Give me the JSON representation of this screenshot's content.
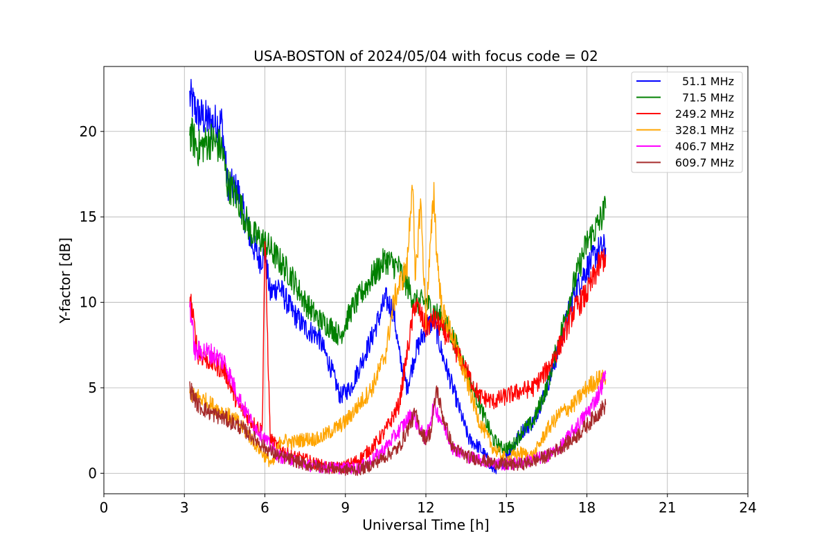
{
  "chart_data": {
    "type": "line",
    "title": "USA-BOSTON of 2024/05/04 with focus code = 02",
    "xlabel": "Universal Time [h]",
    "ylabel": "Y-factor [dB]",
    "xlim": [
      0,
      24
    ],
    "ylim": [
      -1.2,
      23.8
    ],
    "xticks": [
      0,
      3,
      6,
      9,
      12,
      15,
      18,
      21,
      24
    ],
    "yticks": [
      0,
      5,
      10,
      15,
      20
    ],
    "grid": true,
    "legend_position": "top-right",
    "series": [
      {
        "name": "51.1 MHz",
        "color": "#0000ff",
        "x": [
          3.2,
          3.5,
          4.0,
          4.4,
          4.6,
          5.0,
          5.5,
          5.8,
          6.0,
          6.2,
          6.5,
          7.0,
          7.5,
          8.0,
          8.5,
          8.8,
          9.2,
          9.6,
          10.0,
          10.5,
          10.8,
          11.0,
          11.3,
          11.6,
          12.0,
          12.3,
          12.6,
          13.0,
          13.3,
          13.6,
          14.0,
          14.3,
          14.5,
          14.8,
          15.2,
          15.6,
          16.0,
          16.5,
          17.0,
          17.5,
          18.0,
          18.4,
          18.7
        ],
        "y": [
          22.0,
          21.0,
          20.5,
          20.5,
          17.0,
          16.5,
          13.5,
          12.5,
          12.8,
          10.5,
          11.0,
          9.5,
          8.5,
          8.0,
          6.0,
          4.5,
          5.0,
          6.5,
          8.0,
          10.2,
          9.5,
          7.0,
          5.0,
          7.0,
          8.5,
          9.0,
          7.0,
          5.0,
          3.5,
          2.0,
          1.5,
          0.8,
          0.2,
          0.5,
          1.5,
          2.5,
          3.0,
          5.0,
          7.5,
          10.5,
          12.0,
          13.0,
          13.2
        ]
      },
      {
        "name": "71.5 MHz",
        "color": "#008000",
        "x": [
          3.2,
          3.5,
          4.0,
          4.4,
          4.6,
          5.0,
          5.5,
          6.0,
          6.5,
          7.0,
          7.5,
          8.0,
          8.5,
          8.8,
          9.2,
          9.6,
          10.0,
          10.5,
          11.0,
          11.3,
          11.6,
          12.0,
          12.3,
          12.6,
          13.0,
          13.5,
          14.0,
          14.5,
          14.8,
          15.2,
          15.6,
          16.0,
          16.5,
          17.0,
          17.5,
          18.0,
          18.4,
          18.7
        ],
        "y": [
          20.0,
          19.0,
          19.5,
          19.0,
          17.0,
          16.0,
          14.0,
          13.5,
          12.5,
          11.5,
          10.0,
          9.0,
          8.5,
          8.0,
          9.5,
          10.5,
          11.5,
          12.5,
          12.0,
          11.0,
          10.0,
          10.0,
          9.5,
          9.0,
          8.0,
          6.0,
          4.0,
          2.0,
          1.5,
          1.5,
          2.5,
          3.0,
          5.0,
          8.0,
          11.0,
          13.5,
          14.5,
          15.5
        ]
      },
      {
        "name": "249.2 MHz",
        "color": "#ff0000",
        "x": [
          3.2,
          3.5,
          4.0,
          4.5,
          5.0,
          5.5,
          5.9,
          6.0,
          6.2,
          6.5,
          7.0,
          7.5,
          8.0,
          8.5,
          9.0,
          9.5,
          10.0,
          10.5,
          11.0,
          11.3,
          11.6,
          12.0,
          12.3,
          12.6,
          13.0,
          13.5,
          14.0,
          14.5,
          15.0,
          15.5,
          16.0,
          16.5,
          17.0,
          17.5,
          18.0,
          18.4,
          18.7
        ],
        "y": [
          10.5,
          7.0,
          6.5,
          6.0,
          4.0,
          3.0,
          2.5,
          13.8,
          2.0,
          1.5,
          1.0,
          0.8,
          0.5,
          0.3,
          0.4,
          0.8,
          1.5,
          2.5,
          4.0,
          7.0,
          10.0,
          8.5,
          9.0,
          8.5,
          7.5,
          6.0,
          4.5,
          4.2,
          4.5,
          4.8,
          5.0,
          6.0,
          7.5,
          9.5,
          10.5,
          12.0,
          12.8
        ]
      },
      {
        "name": "328.1 MHz",
        "color": "#ffa500",
        "x": [
          3.2,
          3.5,
          4.0,
          4.5,
          5.0,
          5.5,
          6.0,
          6.3,
          6.6,
          7.0,
          7.5,
          8.0,
          8.5,
          9.0,
          9.5,
          10.0,
          10.5,
          10.8,
          11.0,
          11.3,
          11.5,
          11.6,
          11.8,
          12.0,
          12.3,
          12.4,
          12.6,
          13.0,
          13.5,
          14.0,
          14.5,
          15.0,
          15.5,
          16.0,
          16.5,
          17.0,
          17.5,
          18.0,
          18.4,
          18.7
        ],
        "y": [
          4.5,
          4.5,
          4.0,
          3.5,
          3.0,
          2.0,
          1.0,
          0.5,
          2.0,
          1.8,
          2.0,
          2.0,
          2.5,
          3.0,
          4.0,
          5.0,
          7.0,
          10.0,
          11.0,
          12.0,
          17.5,
          11.0,
          16.0,
          9.0,
          16.5,
          13.0,
          9.5,
          8.0,
          5.5,
          3.0,
          1.5,
          0.8,
          1.2,
          1.0,
          2.5,
          3.5,
          4.0,
          5.0,
          5.5,
          5.5
        ]
      },
      {
        "name": "406.7 MHz",
        "color": "#ff00ff",
        "x": [
          3.2,
          3.4,
          3.6,
          4.0,
          4.5,
          5.0,
          5.5,
          6.0,
          6.5,
          7.0,
          7.5,
          8.0,
          8.5,
          9.0,
          9.5,
          10.0,
          10.5,
          11.0,
          11.5,
          11.8,
          12.0,
          12.3,
          12.6,
          13.0,
          13.5,
          14.0,
          14.5,
          15.0,
          15.5,
          16.0,
          16.5,
          17.0,
          17.5,
          18.0,
          18.4,
          18.7
        ],
        "y": [
          10.0,
          7.0,
          7.2,
          7.0,
          6.5,
          4.5,
          3.0,
          2.0,
          1.0,
          0.8,
          0.5,
          0.4,
          0.3,
          0.3,
          0.3,
          0.8,
          1.5,
          2.5,
          3.5,
          2.5,
          2.0,
          4.0,
          3.0,
          1.5,
          1.0,
          0.8,
          0.6,
          0.5,
          0.6,
          0.8,
          1.0,
          1.5,
          2.5,
          3.5,
          4.5,
          5.8
        ]
      },
      {
        "name": "609.7 MHz",
        "color": "#a52a2a",
        "x": [
          3.2,
          3.5,
          4.0,
          4.5,
          5.0,
          5.5,
          6.0,
          6.5,
          7.0,
          7.5,
          8.0,
          8.5,
          9.0,
          9.5,
          10.0,
          10.5,
          11.0,
          11.3,
          11.6,
          11.8,
          12.0,
          12.2,
          12.4,
          12.6,
          13.0,
          13.5,
          14.0,
          14.5,
          15.0,
          15.5,
          16.0,
          16.5,
          17.0,
          17.5,
          18.0,
          18.4,
          18.7
        ],
        "y": [
          5.0,
          4.0,
          3.5,
          3.2,
          2.8,
          2.2,
          1.5,
          1.0,
          0.8,
          0.5,
          0.4,
          0.3,
          0.2,
          0.2,
          0.5,
          1.0,
          1.5,
          2.5,
          3.5,
          2.5,
          2.0,
          2.5,
          5.0,
          3.5,
          1.5,
          1.0,
          0.8,
          0.6,
          0.5,
          0.5,
          0.7,
          1.0,
          1.5,
          2.0,
          2.8,
          3.5,
          4.0
        ]
      }
    ]
  }
}
